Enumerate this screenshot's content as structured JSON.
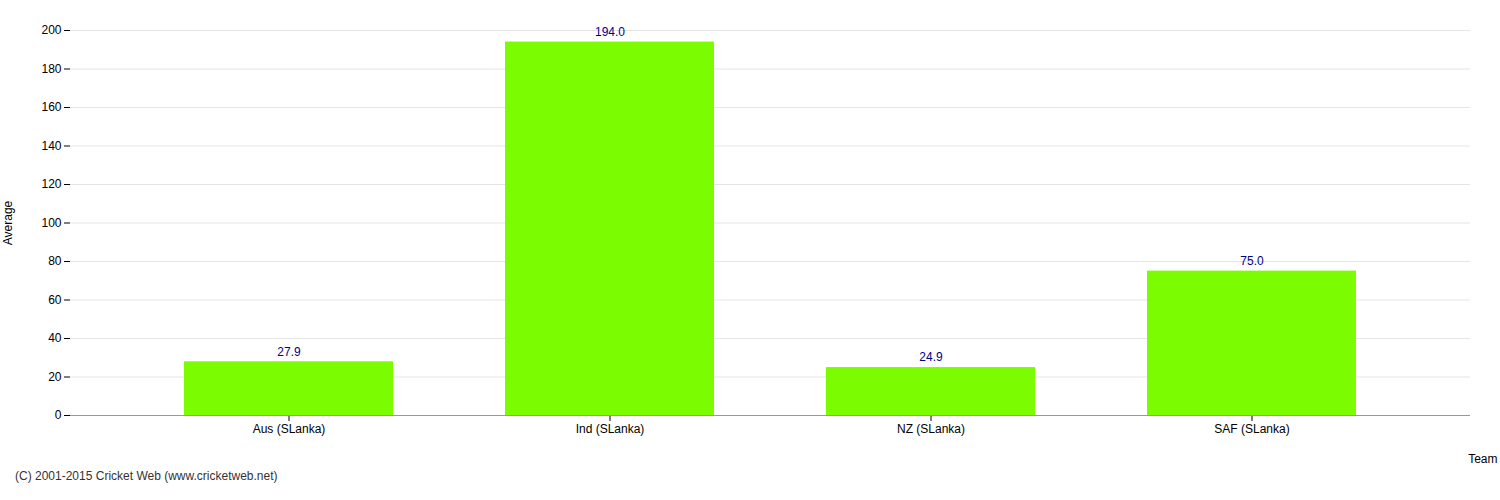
{
  "chart_data": {
    "type": "bar",
    "categories": [
      "Aus (SLanka)",
      "Ind (SLanka)",
      "NZ (SLanka)",
      "SAF (SLanka)"
    ],
    "values": [
      27.9,
      194.0,
      24.9,
      75.0
    ],
    "value_labels": [
      "27.9",
      "194.0",
      "24.9",
      "75.0"
    ],
    "color": "#7CFC00",
    "xlabel": "Team",
    "ylabel": "Average",
    "ylim": [
      0,
      200
    ],
    "yticks": [
      0,
      20,
      40,
      60,
      80,
      100,
      120,
      140,
      160,
      180,
      200
    ],
    "grid": true,
    "data_labels": true,
    "annotations": [
      "(C) 2001-2015 Cricket Web (www.cricketweb.net)"
    ]
  }
}
